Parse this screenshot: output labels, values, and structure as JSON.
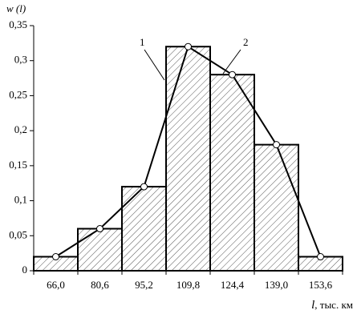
{
  "chart_data": {
    "type": "bar",
    "y_label": "w (l)",
    "x_label_symbol": "l",
    "x_label_unit": ", тыс. км",
    "categories": [
      "66,0",
      "80,6",
      "95,2",
      "109,8",
      "124,4",
      "139,0",
      "153,6"
    ],
    "series": [
      {
        "type": "bar",
        "color": "#000000",
        "values": [
          0.02,
          0.06,
          0.12,
          0.32,
          0.28,
          0.18,
          0.02
        ]
      },
      {
        "type": "line",
        "color": "#000000",
        "values": [
          0.02,
          0.06,
          0.12,
          0.32,
          0.28,
          0.18,
          0.02
        ]
      }
    ],
    "annotations": [
      "1",
      "2"
    ],
    "ylim": [
      0,
      0.35
    ],
    "yticks": [
      0,
      {
        "value": 0.05,
        "label": "0,05"
      },
      {
        "value": 0.1,
        "label": "0,1"
      },
      {
        "value": 0.15,
        "label": "0,15"
      },
      {
        "value": 0.2,
        "label": "0,2"
      },
      {
        "value": 0.25,
        "label": "0,25"
      },
      {
        "value": 0.3,
        "label": "0,3"
      },
      {
        "value": 0.35,
        "label": "0,35"
      }
    ],
    "grid": false
  }
}
